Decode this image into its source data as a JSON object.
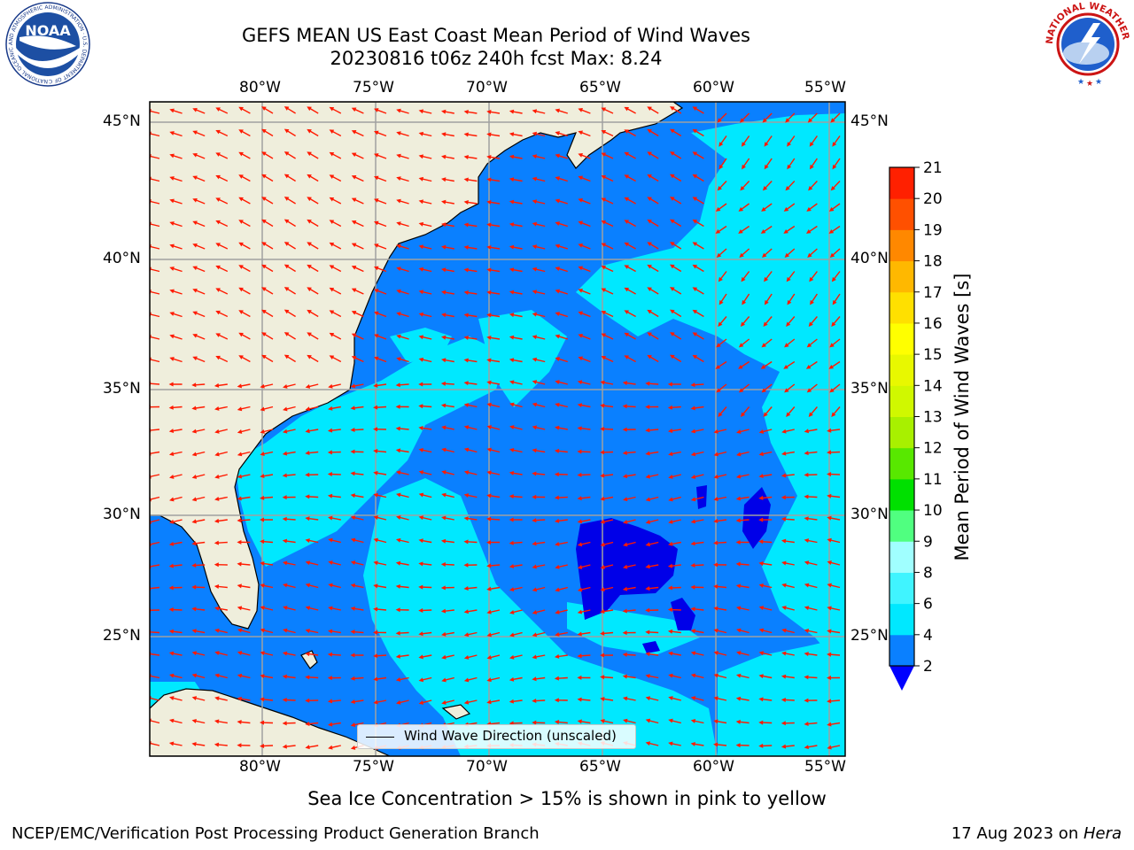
{
  "header": {
    "title_line1": "GEFS MEAN US East Coast Mean Period of Wind Waves",
    "title_line2": "20230816 t06z 240h fcst   Max: 8.24"
  },
  "logos": {
    "left": {
      "name": "noaa-logo",
      "text": "NOAA",
      "ring_text": "NATIONAL OCEANIC AND ATMOSPHERIC ADMINISTRATION · U.S. DEPARTMENT OF COMMERCE"
    },
    "right": {
      "name": "nws-logo",
      "ring_text": "NATIONAL WEATHER SERVICE"
    }
  },
  "map": {
    "lon_labels": [
      "80°W",
      "75°W",
      "70°W",
      "65°W",
      "60°W",
      "55°W"
    ],
    "lat_labels": [
      "45°N",
      "40°N",
      "35°N",
      "30°N",
      "25°N"
    ],
    "legend_label": "Wind Wave Direction (unscaled)",
    "colors": {
      "land": "#efeedc",
      "class_2_4": "#0a80ff",
      "class_4_6": "#00e8ff",
      "class_below_2": "#0000e8",
      "arrows": "#ff1a00"
    }
  },
  "colorbar": {
    "label": "Mean Period of Wind Waves [s]",
    "ticks": [
      "2",
      "4",
      "6",
      "8",
      "9",
      "10",
      "11",
      "12",
      "13",
      "14",
      "15",
      "16",
      "17",
      "18",
      "19",
      "20",
      "21"
    ],
    "colors": [
      "#0a80ff",
      "#00e8ff",
      "#40f4ff",
      "#a0ffff",
      "#50ff80",
      "#00e000",
      "#58e800",
      "#a8f000",
      "#d0f800",
      "#e8f800",
      "#ffff00",
      "#ffe000",
      "#ffb800",
      "#ff8800",
      "#ff5000",
      "#ff2000",
      "#ff0000"
    ],
    "under_color": "#0000ff"
  },
  "footer": {
    "sea_ice_note": "Sea Ice Concentration > 15% is shown in pink to yellow",
    "left": "NCEP/EMC/Verification Post Processing Product Generation Branch",
    "right_prefix": "17 Aug 2023 on ",
    "right_machine": "Hera"
  }
}
